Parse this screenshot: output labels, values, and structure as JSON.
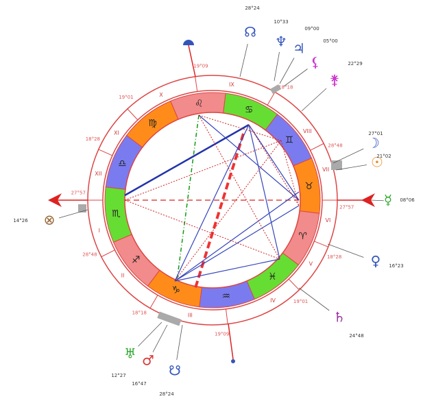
{
  "signs": [
    "♈",
    "♉",
    "♊",
    "♋",
    "♌",
    "♍",
    "♎",
    "♏",
    "♐",
    "♑",
    "♒",
    "♓"
  ],
  "houses": [
    "I",
    "II",
    "III",
    "IV",
    "V",
    "VI",
    "VII",
    "VIII",
    "IX",
    "X",
    "XI",
    "XII"
  ],
  "cusp_degrees": [
    "27°57",
    "28°48",
    "18°18",
    "19°09",
    "19°01",
    "18°28",
    "27°57",
    "28°48",
    "18°18",
    "19°09",
    "19°01",
    "18°28"
  ],
  "planets": [
    {
      "glyph": "☊",
      "degree": "28°24"
    },
    {
      "glyph": "♆",
      "degree": "10°33"
    },
    {
      "glyph": "♃",
      "degree": "09°00"
    },
    {
      "glyph": "⚸",
      "degree": "05°00"
    },
    {
      "glyph": "⚵",
      "degree": "22°29"
    },
    {
      "glyph": "☽",
      "degree": "27°01"
    },
    {
      "glyph": "☉",
      "degree": "21°02"
    },
    {
      "glyph": "☿",
      "degree": "08°06"
    },
    {
      "glyph": "♀",
      "degree": "16°23"
    },
    {
      "glyph": "♄",
      "degree": "24°48"
    },
    {
      "glyph": "♅",
      "degree": "12°27"
    },
    {
      "glyph": "♂",
      "degree": "16°47"
    },
    {
      "glyph": "☋",
      "degree": "28°24"
    },
    {
      "glyph": "⊗",
      "degree": "14°26"
    }
  ]
}
